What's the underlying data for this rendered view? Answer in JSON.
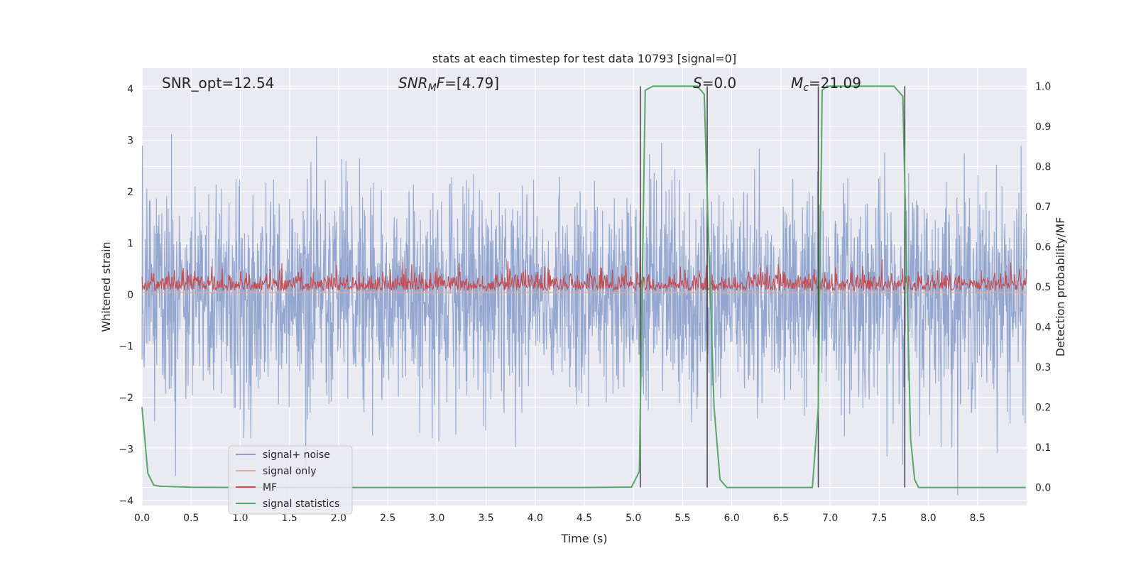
{
  "chart_data": {
    "type": "line",
    "title": "stats at each timestep for test data 10793 [signal=0]",
    "xlabel": "Time (s)",
    "ylabel": "Whitened strain",
    "y2label": "Detection probability/MF",
    "xlim": [
      0,
      9.0
    ],
    "ylim": [
      -4.1,
      4.4
    ],
    "y2lim": [
      -0.045,
      1.045
    ],
    "xticks": [
      "0.0",
      "0.5",
      "1.0",
      "1.5",
      "2.0",
      "2.5",
      "3.0",
      "3.5",
      "4.0",
      "4.5",
      "5.0",
      "5.5",
      "6.0",
      "6.5",
      "7.0",
      "7.5",
      "8.0",
      "8.5"
    ],
    "xtick_values": [
      0,
      0.5,
      1,
      1.5,
      2,
      2.5,
      3,
      3.5,
      4,
      4.5,
      5,
      5.5,
      6,
      6.5,
      7,
      7.5,
      8,
      8.5
    ],
    "yticks": [
      "−4",
      "−3",
      "−2",
      "−1",
      "0",
      "1",
      "2",
      "3",
      "4"
    ],
    "ytick_values": [
      -4,
      -3,
      -2,
      -1,
      0,
      1,
      2,
      3,
      4
    ],
    "y2ticks": [
      "0.0",
      "0.1",
      "0.2",
      "0.3",
      "0.4",
      "0.5",
      "0.6",
      "0.7",
      "0.8",
      "0.9",
      "1.0"
    ],
    "y2tick_values": [
      0,
      0.1,
      0.2,
      0.3,
      0.4,
      0.5,
      0.6,
      0.7,
      0.8,
      0.9,
      1.0
    ],
    "grid": true,
    "legend_position": "lower-left",
    "annotations": {
      "snr_opt": "SNR_opt=12.54",
      "snr_mf_italic": "SNR",
      "snr_mf_sub": "M",
      "snr_mf_italic2": "F",
      "snr_mf_value": "=[4.79]",
      "s_italic": "S",
      "s_value": "=0.0",
      "mc_italic": "M",
      "mc_sub": "c",
      "mc_value": "=21.09"
    },
    "series": [
      {
        "name": "signal+ noise",
        "color": "#8fa3cd",
        "description": "whitened noisy strain, approx. Gaussian, std ~1"
      },
      {
        "name": "signal only",
        "color": "#eba98f",
        "values_constant": 0.04
      },
      {
        "name": "MF",
        "color": "#c44e52",
        "description": "matched filter output, 0.0 to 0.95"
      },
      {
        "name": "signal statistics",
        "color": "#55a868",
        "axis": "right",
        "x": [
          0.0,
          0.06,
          0.12,
          0.18,
          0.3,
          0.5,
          1.0,
          2.0,
          3.0,
          4.0,
          4.5,
          4.98,
          5.06,
          5.12,
          5.2,
          5.3,
          5.5,
          5.65,
          5.72,
          5.76,
          5.82,
          5.88,
          5.95,
          6.0,
          6.5,
          6.82,
          6.88,
          6.92,
          6.97,
          7.1,
          7.4,
          7.65,
          7.74,
          7.77,
          7.82,
          7.86,
          7.9,
          8.0,
          8.5,
          8.99
        ],
        "values": [
          0.2,
          0.035,
          0.006,
          0.003,
          0.002,
          0.0005,
          0.0,
          0.0,
          0.0,
          0.0,
          0.0,
          0.001,
          0.04,
          0.99,
          1.0,
          1.0,
          1.0,
          1.0,
          0.98,
          0.65,
          0.2,
          0.02,
          0.0,
          0.0,
          0.0,
          0.0,
          0.2,
          0.99,
          1.0,
          1.0,
          1.0,
          1.0,
          0.975,
          0.65,
          0.12,
          0.02,
          0.0,
          0.0,
          0.0,
          0.0
        ]
      }
    ],
    "vertical_lines": [
      5.07,
      5.75,
      6.88,
      7.76
    ]
  }
}
